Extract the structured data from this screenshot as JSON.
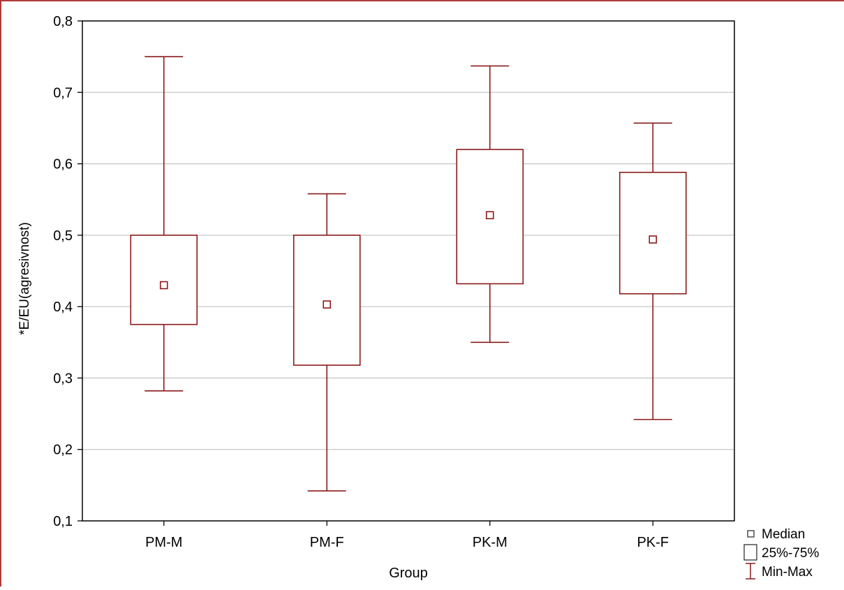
{
  "chart_data": {
    "type": "box",
    "xlabel": "Group",
    "ylabel": "*E/EU(agresivnost)",
    "ylim": [
      0.1,
      0.8
    ],
    "yticks": [
      {
        "value": 0.1,
        "label": "0,1"
      },
      {
        "value": 0.2,
        "label": "0,2"
      },
      {
        "value": 0.3,
        "label": "0,3"
      },
      {
        "value": 0.4,
        "label": "0,4"
      },
      {
        "value": 0.5,
        "label": "0,5"
      },
      {
        "value": 0.6,
        "label": "0,6"
      },
      {
        "value": 0.7,
        "label": "0,7"
      },
      {
        "value": 0.8,
        "label": "0,8"
      }
    ],
    "grid": true,
    "categories": [
      "PM-M",
      "PM-F",
      "PK-M",
      "PK-F"
    ],
    "boxes": [
      {
        "category": "PM-M",
        "min": 0.282,
        "q1": 0.375,
        "median": 0.43,
        "q3": 0.5,
        "max": 0.75
      },
      {
        "category": "PM-F",
        "min": 0.142,
        "q1": 0.318,
        "median": 0.403,
        "q3": 0.5,
        "max": 0.558
      },
      {
        "category": "PK-M",
        "min": 0.35,
        "q1": 0.432,
        "median": 0.528,
        "q3": 0.62,
        "max": 0.737
      },
      {
        "category": "PK-F",
        "min": 0.242,
        "q1": 0.418,
        "median": 0.494,
        "q3": 0.588,
        "max": 0.657
      }
    ],
    "legend": {
      "position": "bottom-right",
      "items": [
        {
          "symbol": "median-square",
          "label": "Median"
        },
        {
          "symbol": "box",
          "label": "25%-75%"
        },
        {
          "symbol": "whisker",
          "label": "Min-Max"
        }
      ]
    },
    "colors": {
      "series": "#8b1a1a",
      "grid": "#c8c8c8",
      "axis": "#000000",
      "frame": "#b03a3a"
    }
  }
}
